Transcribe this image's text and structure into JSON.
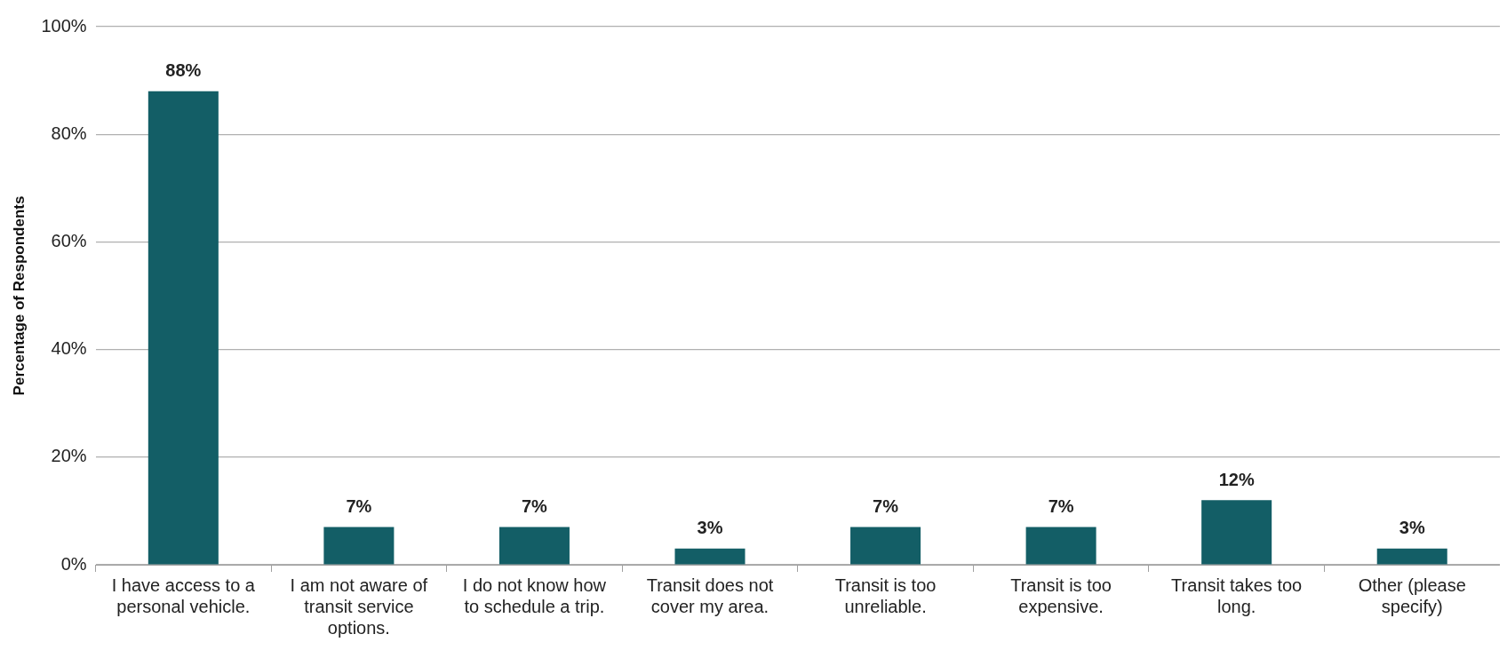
{
  "chart_data": {
    "type": "bar",
    "ylabel": "Percentage of Respondents",
    "categories": [
      "I have access to a personal vehicle.",
      "I am not aware of transit service options.",
      "I do not know how to schedule a trip.",
      "Transit does not cover my area.",
      "Transit is too unreliable.",
      "Transit is too expensive.",
      "Transit takes too long.",
      "Other (please specify)"
    ],
    "values": [
      88,
      7,
      7,
      3,
      7,
      7,
      12,
      3
    ],
    "value_labels": [
      "88%",
      "7%",
      "7%",
      "3%",
      "7%",
      "7%",
      "12%",
      "3%"
    ],
    "color": "#135e66",
    "ylim": [
      0,
      100
    ],
    "yticks": [
      {
        "value": 0,
        "label": "0%"
      },
      {
        "value": 20,
        "label": "20%"
      },
      {
        "value": 40,
        "label": "40%"
      },
      {
        "value": 60,
        "label": "60%"
      },
      {
        "value": 80,
        "label": "80%"
      },
      {
        "value": 100,
        "label": "100%"
      }
    ],
    "grid": "y",
    "legend": false
  }
}
